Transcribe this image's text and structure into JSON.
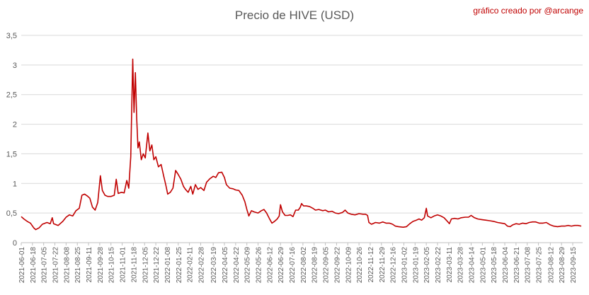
{
  "chart_data": {
    "type": "line",
    "title": "Precio de HIVE (USD)",
    "credit": "gráfico creado por @arcange",
    "xlabel": "",
    "ylabel": "",
    "ylim": [
      0,
      3.5
    ],
    "yticks": [
      "0",
      "0,5",
      "1",
      "1,5",
      "2",
      "2,5",
      "3",
      "3,5"
    ],
    "grid": "horizontal",
    "legend": "none",
    "line_color": "#c00000",
    "x_tick_labels": [
      "2021-06-01",
      "2021-06-18",
      "2021-07-05",
      "2021-07-22",
      "2021-08-08",
      "2021-08-25",
      "2021-09-11",
      "2021-09-28",
      "2021-10-15",
      "2021-11-01",
      "2021-11-18",
      "2021-12-05",
      "2021-12-22",
      "2022-01-08",
      "2022-01-25",
      "2022-02-11",
      "2022-02-28",
      "2022-03-19",
      "2022-04-05",
      "2022-04-22",
      "2022-05-09",
      "2022-05-26",
      "2022-06-12",
      "2022-06-29",
      "2022-07-16",
      "2022-08-02",
      "2022-08-19",
      "2022-09-05",
      "2022-09-22",
      "2022-10-09",
      "2022-10-26",
      "2022-11-12",
      "2022-11-29",
      "2022-12-16",
      "2023-01-02",
      "2023-01-19",
      "2023-02-05",
      "2023-02-22",
      "2023-03-11",
      "2023-03-28",
      "2023-04-14",
      "2023-05-01",
      "2023-05-18",
      "2023-06-04",
      "2023-06-21",
      "2023-07-08",
      "2023-07-25",
      "2023-08-12",
      "2023-08-29",
      "2023-09-15"
    ],
    "series": [
      {
        "points": [
          [
            "2021-06-01",
            0.44
          ],
          [
            "2021-06-05",
            0.4
          ],
          [
            "2021-06-10",
            0.36
          ],
          [
            "2021-06-15",
            0.33
          ],
          [
            "2021-06-20",
            0.25
          ],
          [
            "2021-06-23",
            0.22
          ],
          [
            "2021-06-28",
            0.25
          ],
          [
            "2021-07-03",
            0.31
          ],
          [
            "2021-07-10",
            0.34
          ],
          [
            "2021-07-15",
            0.32
          ],
          [
            "2021-07-18",
            0.42
          ],
          [
            "2021-07-20",
            0.32
          ],
          [
            "2021-07-27",
            0.29
          ],
          [
            "2021-08-03",
            0.36
          ],
          [
            "2021-08-08",
            0.43
          ],
          [
            "2021-08-13",
            0.47
          ],
          [
            "2021-08-18",
            0.45
          ],
          [
            "2021-08-23",
            0.54
          ],
          [
            "2021-08-28",
            0.58
          ],
          [
            "2021-09-01",
            0.8
          ],
          [
            "2021-09-05",
            0.82
          ],
          [
            "2021-09-09",
            0.79
          ],
          [
            "2021-09-13",
            0.75
          ],
          [
            "2021-09-17",
            0.6
          ],
          [
            "2021-09-21",
            0.55
          ],
          [
            "2021-09-25",
            0.68
          ],
          [
            "2021-09-29",
            1.13
          ],
          [
            "2021-10-02",
            0.88
          ],
          [
            "2021-10-06",
            0.8
          ],
          [
            "2021-10-10",
            0.78
          ],
          [
            "2021-10-15",
            0.78
          ],
          [
            "2021-10-20",
            0.8
          ],
          [
            "2021-10-23",
            1.07
          ],
          [
            "2021-10-26",
            0.83
          ],
          [
            "2021-10-31",
            0.85
          ],
          [
            "2021-11-04",
            0.84
          ],
          [
            "2021-11-08",
            1.05
          ],
          [
            "2021-11-11",
            0.92
          ],
          [
            "2021-11-14",
            1.45
          ],
          [
            "2021-11-17",
            3.1
          ],
          [
            "2021-11-19",
            2.2
          ],
          [
            "2021-11-21",
            2.87
          ],
          [
            "2021-11-23",
            2.1
          ],
          [
            "2021-11-25",
            1.6
          ],
          [
            "2021-11-27",
            1.7
          ],
          [
            "2021-11-30",
            1.4
          ],
          [
            "2021-12-03",
            1.5
          ],
          [
            "2021-12-06",
            1.43
          ],
          [
            "2021-12-10",
            1.85
          ],
          [
            "2021-12-13",
            1.55
          ],
          [
            "2021-12-16",
            1.65
          ],
          [
            "2021-12-19",
            1.4
          ],
          [
            "2021-12-22",
            1.45
          ],
          [
            "2021-12-26",
            1.28
          ],
          [
            "2021-12-30",
            1.32
          ],
          [
            "2022-01-03",
            1.12
          ],
          [
            "2022-01-06",
            0.98
          ],
          [
            "2022-01-09",
            0.82
          ],
          [
            "2022-01-13",
            0.85
          ],
          [
            "2022-01-17",
            0.92
          ],
          [
            "2022-01-21",
            1.22
          ],
          [
            "2022-01-25",
            1.15
          ],
          [
            "2022-01-29",
            1.07
          ],
          [
            "2022-02-02",
            0.95
          ],
          [
            "2022-02-05",
            0.9
          ],
          [
            "2022-02-09",
            0.85
          ],
          [
            "2022-02-13",
            0.95
          ],
          [
            "2022-02-16",
            0.82
          ],
          [
            "2022-02-20",
            0.98
          ],
          [
            "2022-02-24",
            0.9
          ],
          [
            "2022-02-28",
            0.93
          ],
          [
            "2022-03-05",
            0.88
          ],
          [
            "2022-03-09",
            1.02
          ],
          [
            "2022-03-14",
            1.08
          ],
          [
            "2022-03-19",
            1.12
          ],
          [
            "2022-03-23",
            1.1
          ],
          [
            "2022-03-27",
            1.18
          ],
          [
            "2022-04-01",
            1.19
          ],
          [
            "2022-04-05",
            1.1
          ],
          [
            "2022-04-08",
            0.98
          ],
          [
            "2022-04-13",
            0.92
          ],
          [
            "2022-04-18",
            0.91
          ],
          [
            "2022-04-22",
            0.89
          ],
          [
            "2022-04-27",
            0.88
          ],
          [
            "2022-05-02",
            0.8
          ],
          [
            "2022-05-06",
            0.69
          ],
          [
            "2022-05-09",
            0.56
          ],
          [
            "2022-05-12",
            0.45
          ],
          [
            "2022-05-16",
            0.54
          ],
          [
            "2022-05-20",
            0.52
          ],
          [
            "2022-05-26",
            0.5
          ],
          [
            "2022-05-31",
            0.54
          ],
          [
            "2022-06-04",
            0.56
          ],
          [
            "2022-06-08",
            0.5
          ],
          [
            "2022-06-12",
            0.41
          ],
          [
            "2022-06-16",
            0.33
          ],
          [
            "2022-06-20",
            0.36
          ],
          [
            "2022-06-24",
            0.4
          ],
          [
            "2022-06-27",
            0.45
          ],
          [
            "2022-06-29",
            0.64
          ],
          [
            "2022-07-02",
            0.52
          ],
          [
            "2022-07-06",
            0.46
          ],
          [
            "2022-07-10",
            0.46
          ],
          [
            "2022-07-14",
            0.47
          ],
          [
            "2022-07-18",
            0.44
          ],
          [
            "2022-07-22",
            0.55
          ],
          [
            "2022-07-26",
            0.55
          ],
          [
            "2022-07-29",
            0.6
          ],
          [
            "2022-07-31",
            0.66
          ],
          [
            "2022-08-03",
            0.62
          ],
          [
            "2022-08-07",
            0.62
          ],
          [
            "2022-08-12",
            0.61
          ],
          [
            "2022-08-17",
            0.58
          ],
          [
            "2022-08-21",
            0.55
          ],
          [
            "2022-08-26",
            0.56
          ],
          [
            "2022-09-01",
            0.54
          ],
          [
            "2022-09-05",
            0.55
          ],
          [
            "2022-09-10",
            0.52
          ],
          [
            "2022-09-15",
            0.53
          ],
          [
            "2022-09-20",
            0.5
          ],
          [
            "2022-09-25",
            0.49
          ],
          [
            "2022-10-01",
            0.51
          ],
          [
            "2022-10-05",
            0.55
          ],
          [
            "2022-10-09",
            0.5
          ],
          [
            "2022-10-14",
            0.48
          ],
          [
            "2022-10-20",
            0.47
          ],
          [
            "2022-10-26",
            0.49
          ],
          [
            "2022-11-01",
            0.48
          ],
          [
            "2022-11-05",
            0.48
          ],
          [
            "2022-11-08",
            0.46
          ],
          [
            "2022-11-10",
            0.34
          ],
          [
            "2022-11-14",
            0.31
          ],
          [
            "2022-11-20",
            0.34
          ],
          [
            "2022-11-26",
            0.33
          ],
          [
            "2022-12-01",
            0.35
          ],
          [
            "2022-12-06",
            0.33
          ],
          [
            "2022-12-11",
            0.33
          ],
          [
            "2022-12-16",
            0.31
          ],
          [
            "2022-12-20",
            0.28
          ],
          [
            "2022-12-25",
            0.27
          ],
          [
            "2023-01-01",
            0.26
          ],
          [
            "2023-01-06",
            0.27
          ],
          [
            "2023-01-11",
            0.32
          ],
          [
            "2023-01-16",
            0.36
          ],
          [
            "2023-01-21",
            0.38
          ],
          [
            "2023-01-25",
            0.4
          ],
          [
            "2023-01-29",
            0.38
          ],
          [
            "2023-02-02",
            0.42
          ],
          [
            "2023-02-05",
            0.58
          ],
          [
            "2023-02-07",
            0.45
          ],
          [
            "2023-02-12",
            0.42
          ],
          [
            "2023-02-17",
            0.45
          ],
          [
            "2023-02-22",
            0.47
          ],
          [
            "2023-02-27",
            0.45
          ],
          [
            "2023-03-04",
            0.42
          ],
          [
            "2023-03-09",
            0.36
          ],
          [
            "2023-03-12",
            0.32
          ],
          [
            "2023-03-15",
            0.4
          ],
          [
            "2023-03-20",
            0.41
          ],
          [
            "2023-03-25",
            0.4
          ],
          [
            "2023-03-30",
            0.42
          ],
          [
            "2023-04-05",
            0.43
          ],
          [
            "2023-04-10",
            0.43
          ],
          [
            "2023-04-14",
            0.46
          ],
          [
            "2023-04-19",
            0.42
          ],
          [
            "2023-04-24",
            0.4
          ],
          [
            "2023-04-30",
            0.39
          ],
          [
            "2023-05-06",
            0.38
          ],
          [
            "2023-05-12",
            0.37
          ],
          [
            "2023-05-18",
            0.36
          ],
          [
            "2023-05-24",
            0.34
          ],
          [
            "2023-05-30",
            0.33
          ],
          [
            "2023-06-04",
            0.32
          ],
          [
            "2023-06-08",
            0.28
          ],
          [
            "2023-06-12",
            0.27
          ],
          [
            "2023-06-16",
            0.3
          ],
          [
            "2023-06-21",
            0.32
          ],
          [
            "2023-06-26",
            0.31
          ],
          [
            "2023-07-01",
            0.33
          ],
          [
            "2023-07-06",
            0.32
          ],
          [
            "2023-07-11",
            0.34
          ],
          [
            "2023-07-16",
            0.35
          ],
          [
            "2023-07-21",
            0.35
          ],
          [
            "2023-07-26",
            0.33
          ],
          [
            "2023-08-01",
            0.33
          ],
          [
            "2023-08-06",
            0.34
          ],
          [
            "2023-08-12",
            0.3
          ],
          [
            "2023-08-17",
            0.28
          ],
          [
            "2023-08-23",
            0.27
          ],
          [
            "2023-08-29",
            0.28
          ],
          [
            "2023-09-03",
            0.28
          ],
          [
            "2023-09-08",
            0.29
          ],
          [
            "2023-09-13",
            0.28
          ],
          [
            "2023-09-18",
            0.29
          ],
          [
            "2023-09-23",
            0.29
          ],
          [
            "2023-09-28",
            0.28
          ]
        ]
      }
    ]
  }
}
